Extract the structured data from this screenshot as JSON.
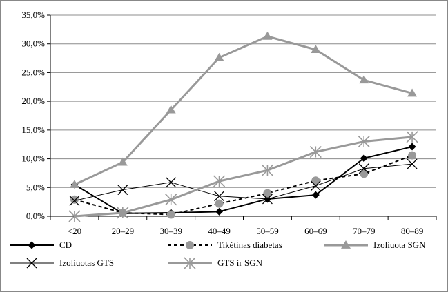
{
  "chart_data": {
    "type": "line",
    "title": "",
    "xlabel": "",
    "ylabel": "",
    "categories": [
      "<20",
      "20–29",
      "30–39",
      "40–49",
      "50–59",
      "60–69",
      "70–79",
      "80–89"
    ],
    "ylim": [
      0,
      35
    ],
    "y_ticks": [
      0,
      5,
      10,
      15,
      20,
      25,
      30,
      35
    ],
    "y_tick_labels": [
      "0,0%",
      "5,0%",
      "10,0%",
      "15,0%",
      "20,0%",
      "25,0%",
      "30,0%",
      "35,0%"
    ],
    "grid": true,
    "legend_position": "bottom",
    "series": [
      {
        "name": "CD",
        "values": [
          5.5,
          0.5,
          0.6,
          0.8,
          3.0,
          3.7,
          10.1,
          12.1
        ],
        "color": "#000000",
        "line": "solid",
        "marker": "diamond"
      },
      {
        "name": "Tikėtinas diabetas",
        "values": [
          2.9,
          0.6,
          0.3,
          2.2,
          4.0,
          6.2,
          7.4,
          10.6
        ],
        "color": "#000000",
        "line": "dashed",
        "marker": "circle",
        "marker_color": "#999999"
      },
      {
        "name": "Izoliuota SGN",
        "values": [
          5.5,
          9.4,
          18.5,
          27.6,
          31.3,
          29.0,
          23.7,
          21.4
        ],
        "color": "#999999",
        "line": "solid",
        "marker": "triangle"
      },
      {
        "name": "Izoliuotas GTS",
        "values": [
          2.7,
          4.6,
          5.9,
          3.5,
          3.0,
          5.3,
          8.3,
          9.1
        ],
        "color": "#000000",
        "line": "thin",
        "marker": "x"
      },
      {
        "name": "GTS ir SGN",
        "values": [
          0.0,
          0.6,
          2.9,
          6.1,
          8.0,
          11.2,
          13.0,
          13.8
        ],
        "color": "#999999",
        "line": "solid",
        "marker": "star"
      }
    ]
  }
}
